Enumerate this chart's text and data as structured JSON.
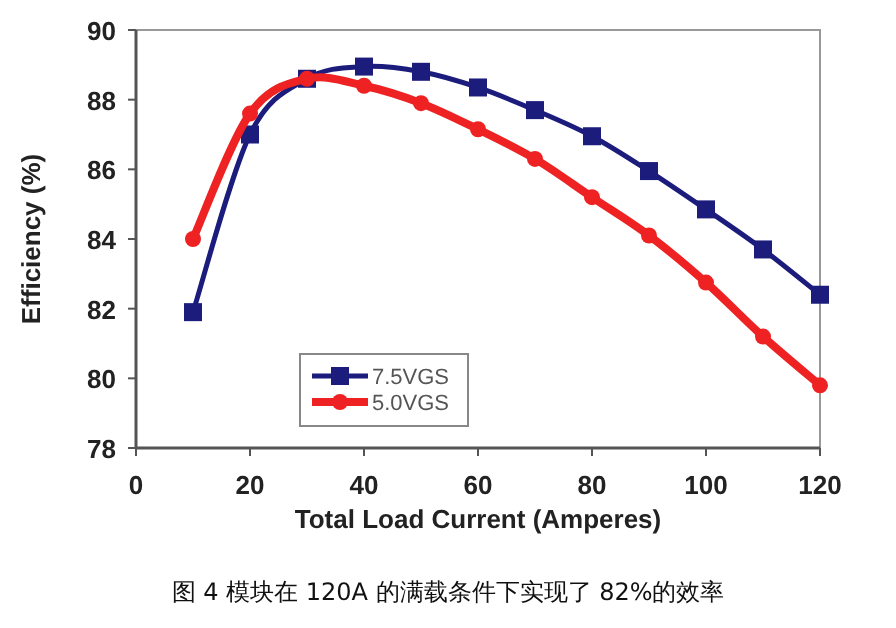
{
  "chart_data": {
    "type": "line",
    "xlabel": "Total Load Current (Amperes)",
    "ylabel": "Efficiency (%)",
    "x": [
      10,
      20,
      30,
      40,
      50,
      60,
      70,
      80,
      90,
      100,
      110,
      120
    ],
    "series": [
      {
        "name": "7.5VGS",
        "color": "#1c1c7c",
        "marker": "square",
        "values": [
          81.9,
          87.0,
          88.6,
          88.95,
          88.8,
          88.35,
          87.7,
          86.95,
          85.95,
          84.85,
          83.7,
          82.4
        ]
      },
      {
        "name": "5.0VGS",
        "color": "#ee2222",
        "marker": "circle",
        "values": [
          84.0,
          87.6,
          88.6,
          88.4,
          87.9,
          87.15,
          86.3,
          85.2,
          84.1,
          82.75,
          81.2,
          79.8
        ]
      }
    ],
    "xlim": [
      0,
      120
    ],
    "xticks": [
      0,
      20,
      40,
      60,
      80,
      100,
      120
    ],
    "ylim": [
      78,
      90
    ],
    "yticks": [
      78,
      80,
      82,
      84,
      86,
      88,
      90
    ],
    "legend": "bottom left",
    "grid": false,
    "annotations": [
      "图 4 模块在 120A 的满载条件下实现了 82%的效率"
    ]
  }
}
